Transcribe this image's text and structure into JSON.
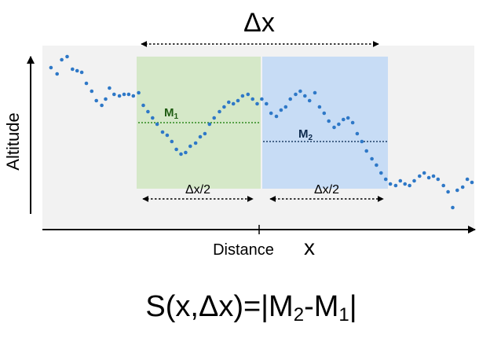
{
  "title": "Δx",
  "labels": {
    "ylabel": "Altitude",
    "xlabel": "Distance",
    "x_marker": "x",
    "half_left": "Δx/2",
    "half_right": "Δx/2"
  },
  "m1": {
    "base": "M",
    "sub": "1"
  },
  "m2": {
    "base": "M",
    "sub": "2"
  },
  "formula": {
    "part1": "S(x,Δx)=|M",
    "sub1": "2",
    "part2": "-M",
    "sub2": "1",
    "part3": "|"
  },
  "colors": {
    "plot_bg": "#f2f2f2",
    "left_window": "#d5e8c8",
    "right_window": "#c7dcf5",
    "points": "#2e78c7",
    "m1_line": "#2f8a1f",
    "m1_text": "#1f5c12",
    "m2_line": "#1f3f66",
    "m2_text": "#0d2a4d"
  },
  "altitude_series": [
    [
      0.5,
      8.6
    ],
    [
      1.3,
      8.2
    ],
    [
      1.9,
      9.1
    ],
    [
      2.6,
      9.3
    ],
    [
      3.3,
      8.5
    ],
    [
      3.9,
      8.4
    ],
    [
      4.5,
      8.3
    ],
    [
      5.1,
      7.6
    ],
    [
      5.8,
      7.1
    ],
    [
      6.4,
      6.5
    ],
    [
      7.1,
      6.2
    ],
    [
      7.6,
      6.6
    ],
    [
      8.1,
      7.3
    ],
    [
      8.7,
      6.9
    ],
    [
      9.4,
      6.8
    ],
    [
      10.0,
      6.9
    ],
    [
      10.6,
      6.9
    ],
    [
      11.2,
      6.8
    ],
    [
      11.9,
      7.0
    ],
    [
      12.5,
      6.2
    ],
    [
      13.1,
      5.8
    ],
    [
      13.7,
      5.4
    ],
    [
      14.3,
      5.0
    ],
    [
      15.0,
      4.5
    ],
    [
      15.6,
      4.3
    ],
    [
      16.2,
      3.9
    ],
    [
      16.8,
      3.4
    ],
    [
      17.4,
      3.1
    ],
    [
      18.0,
      3.2
    ],
    [
      18.6,
      3.6
    ],
    [
      19.3,
      3.8
    ],
    [
      19.9,
      4.2
    ],
    [
      20.5,
      4.4
    ],
    [
      21.1,
      5.0
    ],
    [
      21.7,
      5.4
    ],
    [
      22.4,
      5.8
    ],
    [
      23.0,
      6.1
    ],
    [
      23.6,
      6.4
    ],
    [
      24.2,
      6.3
    ],
    [
      24.8,
      6.5
    ],
    [
      25.4,
      6.8
    ],
    [
      26.1,
      6.9
    ],
    [
      26.7,
      6.6
    ],
    [
      27.3,
      6.3
    ],
    [
      27.9,
      6.6
    ],
    [
      28.5,
      6.3
    ],
    [
      29.1,
      5.7
    ],
    [
      29.8,
      5.5
    ],
    [
      30.4,
      5.9
    ],
    [
      31.0,
      6.1
    ],
    [
      31.6,
      6.6
    ],
    [
      32.3,
      6.9
    ],
    [
      32.9,
      7.1
    ],
    [
      33.5,
      6.8
    ],
    [
      34.1,
      6.5
    ],
    [
      34.8,
      7.0
    ],
    [
      35.4,
      6.1
    ],
    [
      36.0,
      5.7
    ],
    [
      36.6,
      5.2
    ],
    [
      37.3,
      4.8
    ],
    [
      37.9,
      5.0
    ],
    [
      38.5,
      5.3
    ],
    [
      39.1,
      5.4
    ],
    [
      39.7,
      5.1
    ],
    [
      40.3,
      4.4
    ],
    [
      40.9,
      3.9
    ],
    [
      41.5,
      3.3
    ],
    [
      42.2,
      2.8
    ],
    [
      42.8,
      2.4
    ],
    [
      43.4,
      1.9
    ],
    [
      44.0,
      1.5
    ],
    [
      44.6,
      1.2
    ],
    [
      45.3,
      1.1
    ],
    [
      45.9,
      1.4
    ],
    [
      46.5,
      1.2
    ],
    [
      47.1,
      1.1
    ],
    [
      47.7,
      1.4
    ],
    [
      48.4,
      1.7
    ],
    [
      49.0,
      1.9
    ],
    [
      49.6,
      1.6
    ],
    [
      50.2,
      1.7
    ],
    [
      50.8,
      1.5
    ],
    [
      51.5,
      1.1
    ],
    [
      52.1,
      0.7
    ],
    [
      52.7,
      -0.3
    ],
    [
      53.3,
      0.8
    ],
    [
      54.0,
      1.0
    ],
    [
      54.6,
      1.5
    ],
    [
      55.2,
      1.3
    ]
  ]
}
